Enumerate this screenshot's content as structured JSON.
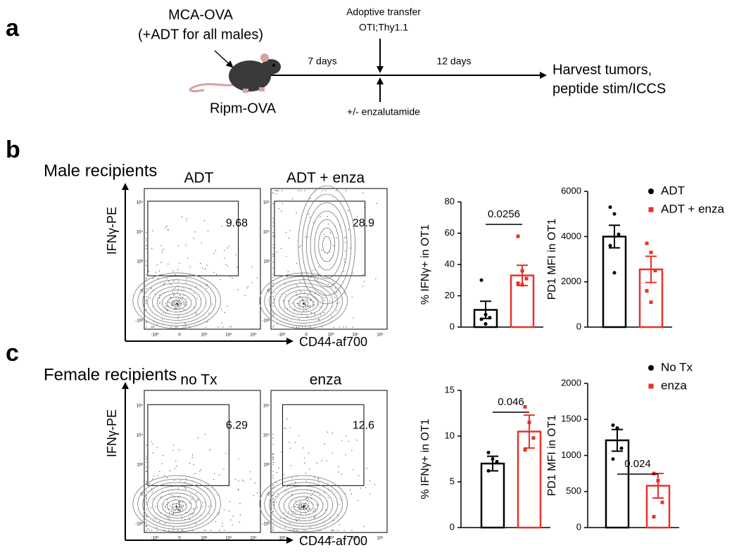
{
  "panel_a": {
    "letter": "a",
    "tumor": "MCA-OVA",
    "adt_note": "(+ADT for all males)",
    "mouse": "Ripm-OVA",
    "interval_1": "7 days",
    "transfer_1": "Adoptive transfer",
    "transfer_2": "OTI;Thy1.1",
    "interval_2": "12 days",
    "treatment": "+/- enzalutamide",
    "endpoint_1": "Harvest tumors,",
    "endpoint_2": "peptide stim/ICCS"
  },
  "panel_b": {
    "letter": "b",
    "title": "Male recipients",
    "plots": [
      {
        "title": "ADT",
        "gate": "9.68"
      },
      {
        "title": "ADT + enza",
        "gate": "28.9"
      }
    ]
  },
  "panel_c": {
    "letter": "c",
    "title": "Female recipients",
    "plots": [
      {
        "title": "no Tx",
        "gate": "6.29"
      },
      {
        "title": "enza",
        "gate": "12.6"
      }
    ]
  },
  "flow_axes": {
    "y_label": "IFNγ-PE",
    "x_label": "CD44-af700",
    "x_ticks": [
      "-10³",
      "0",
      "10³",
      "10⁴",
      "10⁵"
    ],
    "y_ticks": [
      "-10³",
      "0",
      "10³",
      "10⁴",
      "10⁵"
    ]
  },
  "chart_data": [
    {
      "type": "bar",
      "ylabel": "% IFNγ+ in OT1",
      "categories": [
        null,
        null
      ],
      "colors": [
        "#000000",
        "#e8322a"
      ],
      "values": [
        11,
        33
      ],
      "errors": [
        5.5,
        6.5
      ],
      "points": [
        [
          30,
          8,
          6,
          5,
          2
        ],
        [
          58,
          36,
          31,
          28,
          27
        ]
      ],
      "ylim": [
        0,
        80
      ],
      "yticks": [
        0,
        20,
        40,
        60,
        80
      ],
      "pvalue": "0.0256"
    },
    {
      "type": "bar",
      "ylabel": "PD1 MFI in OT1",
      "categories": [
        null,
        null
      ],
      "colors": [
        "#000000",
        "#e8322a"
      ],
      "values": [
        4000,
        2550
      ],
      "errors": [
        500,
        580
      ],
      "points": [
        [
          5300,
          5000,
          4100,
          3600,
          2400
        ],
        [
          3700,
          3300,
          2500,
          1600,
          1100
        ]
      ],
      "ylim": [
        0,
        6000
      ],
      "yticks": [
        0,
        2000,
        4000,
        6000
      ],
      "legend": [
        "ADT",
        "ADT + enza"
      ]
    },
    {
      "type": "bar",
      "ylabel": "% IFNγ+ in OT1",
      "categories": [
        null,
        null
      ],
      "colors": [
        "#000000",
        "#e8322a"
      ],
      "values": [
        7,
        10.5
      ],
      "errors": [
        0.8,
        1.8
      ],
      "points": [
        [
          8.2,
          7.5,
          7.2,
          6.2
        ],
        [
          13.2,
          11.5,
          9.8,
          8.5
        ]
      ],
      "ylim": [
        0,
        15
      ],
      "yticks": [
        0,
        5,
        10,
        15
      ],
      "pvalue": "0.046"
    },
    {
      "type": "bar",
      "ylabel": "PD1 MFI in OT1",
      "categories": [
        null,
        null
      ],
      "colors": [
        "#000000",
        "#e8322a"
      ],
      "values": [
        1210,
        580
      ],
      "errors": [
        150,
        170
      ],
      "points": [
        [
          1420,
          1380,
          1100,
          950
        ],
        [
          750,
          650,
          350,
          150
        ]
      ],
      "ylim": [
        0,
        2000
      ],
      "yticks": [
        0,
        500,
        1000,
        1500,
        2000
      ],
      "legend": [
        "No Tx",
        "enza"
      ],
      "pvalue": "0.024"
    }
  ]
}
